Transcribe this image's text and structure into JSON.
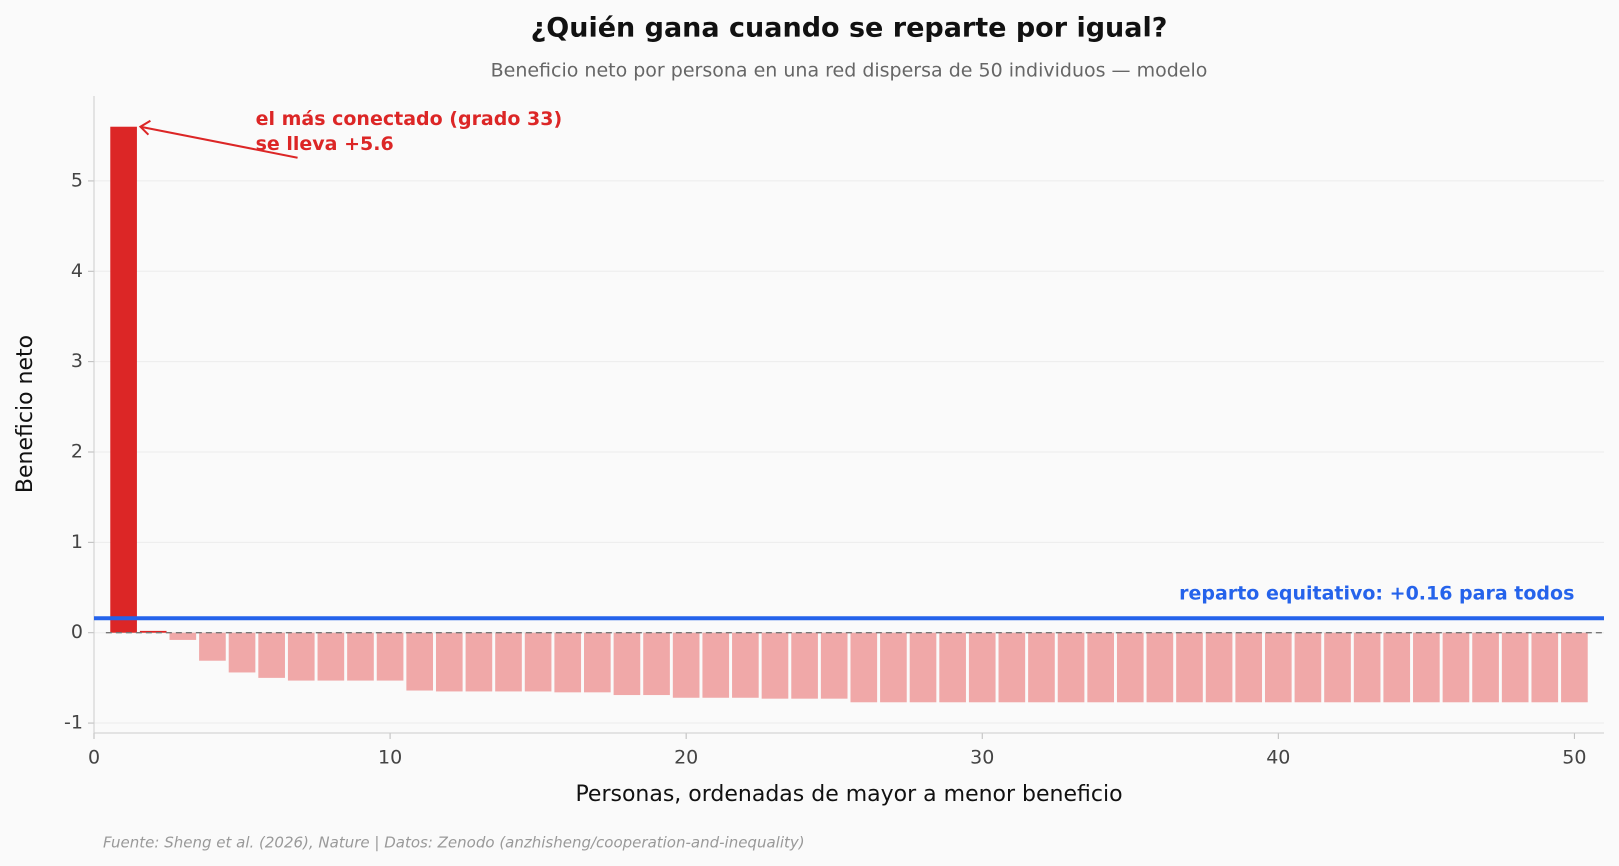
{
  "chart_data": {
    "type": "bar",
    "title": "¿Quién gana cuando se reparte por igual?",
    "subtitle": "Beneficio neto por persona en una red dispersa de 50 individuos — modelo",
    "x_label": "Personas, ordenadas de mayor a menor beneficio",
    "y_label": "Beneficio neto",
    "source": "Fuente: Sheng et al. (2026), Nature | Datos: Zenodo (anzhisheng/cooperation-and-inequality)",
    "x": [
      1,
      2,
      3,
      4,
      5,
      6,
      7,
      8,
      9,
      10,
      11,
      12,
      13,
      14,
      15,
      16,
      17,
      18,
      19,
      20,
      21,
      22,
      23,
      24,
      25,
      26,
      27,
      28,
      29,
      30,
      31,
      32,
      33,
      34,
      35,
      36,
      37,
      38,
      39,
      40,
      41,
      42,
      43,
      44,
      45,
      46,
      47,
      48,
      49,
      50
    ],
    "values": [
      5.6,
      0.02,
      -0.08,
      -0.31,
      -0.44,
      -0.5,
      -0.53,
      -0.53,
      -0.53,
      -0.53,
      -0.64,
      -0.65,
      -0.65,
      -0.65,
      -0.65,
      -0.66,
      -0.66,
      -0.69,
      -0.69,
      -0.72,
      -0.72,
      -0.72,
      -0.73,
      -0.73,
      -0.73,
      -0.77,
      -0.77,
      -0.77,
      -0.77,
      -0.77,
      -0.77,
      -0.77,
      -0.77,
      -0.77,
      -0.77,
      -0.77,
      -0.77,
      -0.77,
      -0.77,
      -0.77,
      -0.77,
      -0.77,
      -0.77,
      -0.77,
      -0.77,
      -0.77,
      -0.77,
      -0.77,
      -0.77,
      -0.77
    ],
    "positive_color": "#dc2626",
    "negative_color": "#f0a8a8",
    "xlim": [
      0,
      51
    ],
    "ylim": [
      -1.11,
      5.94
    ],
    "xticks": [
      0,
      10,
      20,
      30,
      40,
      50
    ],
    "yticks": [
      -1,
      0,
      1,
      2,
      3,
      4,
      5
    ],
    "grid": true,
    "reference_line": {
      "value": 0.16,
      "color": "#2563eb",
      "label": "reparto equitativo: +0.16 para todos"
    },
    "annotation": {
      "lines": [
        "el más conectado (grado 33)",
        "se lleva +5.6"
      ],
      "color": "#dc2626"
    }
  }
}
